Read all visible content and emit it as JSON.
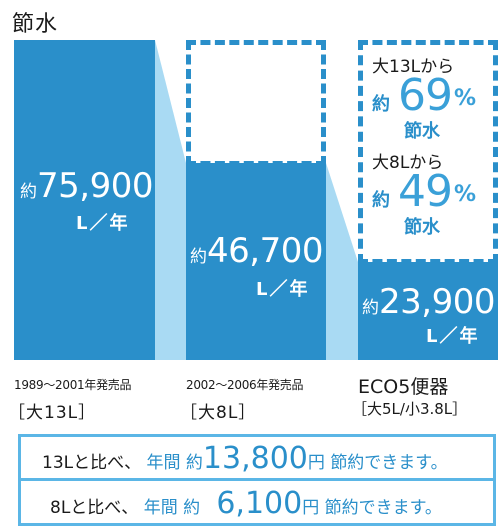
{
  "title": "節水",
  "chart_data": {
    "type": "bar",
    "categories": [
      "1989〜2001年発売品［大13L］",
      "2002〜2006年発売品［大8L］",
      "ECO5便器［大5L/小3.8L］"
    ],
    "values": [
      75900,
      46700,
      23900
    ],
    "unit": "L／年",
    "colors": {
      "bar": "#2a8fca",
      "connector": "#a9daf3",
      "accent": "#3aa0d8"
    }
  },
  "bars": [
    {
      "prefix": "約",
      "value": "75,900",
      "unit": "L／年",
      "years": "1989〜2001年発売品",
      "spec": "［大13L］"
    },
    {
      "prefix": "約",
      "value": "46,700",
      "unit": "L／年",
      "years": "2002〜2006年発売品",
      "spec": "［大8L］"
    },
    {
      "prefix": "約",
      "value": "23,900",
      "unit": "L／年",
      "name": "ECO5便器",
      "spec": "［大5L/小3.8L］"
    }
  ],
  "callout": {
    "a": {
      "label": "大13Lから",
      "prefix": "約",
      "num": "69",
      "pct": "%",
      "word": "節水"
    },
    "b": {
      "label": "大8Lから",
      "prefix": "約",
      "num": "49",
      "pct": "%",
      "word": "節水"
    }
  },
  "savings": [
    {
      "lead": "13Lと比べ、",
      "mid": "年間",
      "approx": "約",
      "amount": "13,800",
      "yen": "円",
      "tail": "節約できます。"
    },
    {
      "lead": "8Lと比べ、",
      "mid": "年間",
      "approx": "約",
      "amount": "6,100",
      "yen": "円",
      "tail": "節約できます。"
    }
  ]
}
